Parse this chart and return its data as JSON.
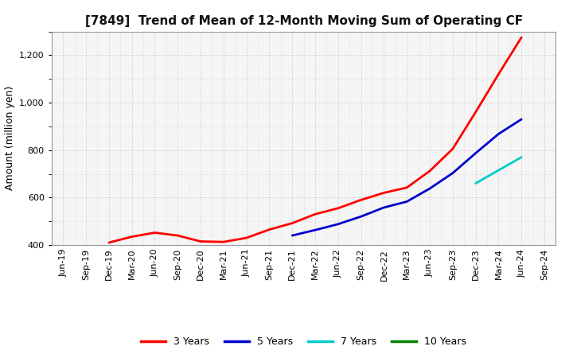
{
  "title": "[7849]  Trend of Mean of 12-Month Moving Sum of Operating CF",
  "ylabel": "Amount (million yen)",
  "ylim": [
    400,
    1300
  ],
  "yticks": [
    400,
    600,
    800,
    1000,
    1200
  ],
  "background_color": "#ffffff",
  "plot_background_color": "#f5f5f5",
  "grid_color": "#bbbbbb",
  "series": {
    "3years": {
      "color": "#ff0000",
      "label": "3 Years",
      "x": [
        "Jun-19",
        "Sep-19",
        "Dec-19",
        "Mar-20",
        "Jun-20",
        "Sep-20",
        "Dec-20",
        "Mar-21",
        "Jun-21",
        "Sep-21",
        "Dec-21",
        "Mar-22",
        "Jun-22",
        "Sep-22",
        "Dec-22",
        "Mar-23",
        "Jun-23",
        "Sep-23",
        "Dec-23",
        "Mar-24",
        "Jun-24"
      ],
      "y": [
        null,
        null,
        410,
        435,
        452,
        440,
        415,
        413,
        430,
        465,
        492,
        530,
        555,
        590,
        620,
        642,
        712,
        805,
        960,
        1120,
        1275
      ]
    },
    "5years": {
      "color": "#0000cc",
      "label": "5 Years",
      "x": [
        "Dec-21",
        "Mar-22",
        "Jun-22",
        "Sep-22",
        "Dec-22",
        "Mar-23",
        "Jun-23",
        "Sep-23",
        "Dec-23",
        "Mar-24",
        "Jun-24"
      ],
      "y": [
        440,
        463,
        488,
        520,
        558,
        583,
        638,
        703,
        787,
        868,
        930
      ]
    },
    "7years": {
      "color": "#00cccc",
      "label": "7 Years",
      "x": [
        "Dec-23",
        "Mar-24",
        "Jun-24"
      ],
      "y": [
        660,
        715,
        770
      ]
    },
    "10years": {
      "color": "#008000",
      "label": "10 Years",
      "x": [],
      "y": []
    }
  },
  "xtick_labels": [
    "Jun-19",
    "Sep-19",
    "Dec-19",
    "Mar-20",
    "Jun-20",
    "Sep-20",
    "Dec-20",
    "Mar-21",
    "Jun-21",
    "Sep-21",
    "Dec-21",
    "Mar-22",
    "Jun-22",
    "Sep-22",
    "Dec-22",
    "Mar-23",
    "Jun-23",
    "Sep-23",
    "Dec-23",
    "Mar-24",
    "Jun-24",
    "Sep-24"
  ],
  "legend_labels": [
    "3 Years",
    "5 Years",
    "7 Years",
    "10 Years"
  ],
  "legend_colors": [
    "#ff0000",
    "#0000cc",
    "#00cccc",
    "#008000"
  ],
  "title_fontsize": 11,
  "ylabel_fontsize": 9,
  "tick_labelsize": 8,
  "legend_fontsize": 9
}
